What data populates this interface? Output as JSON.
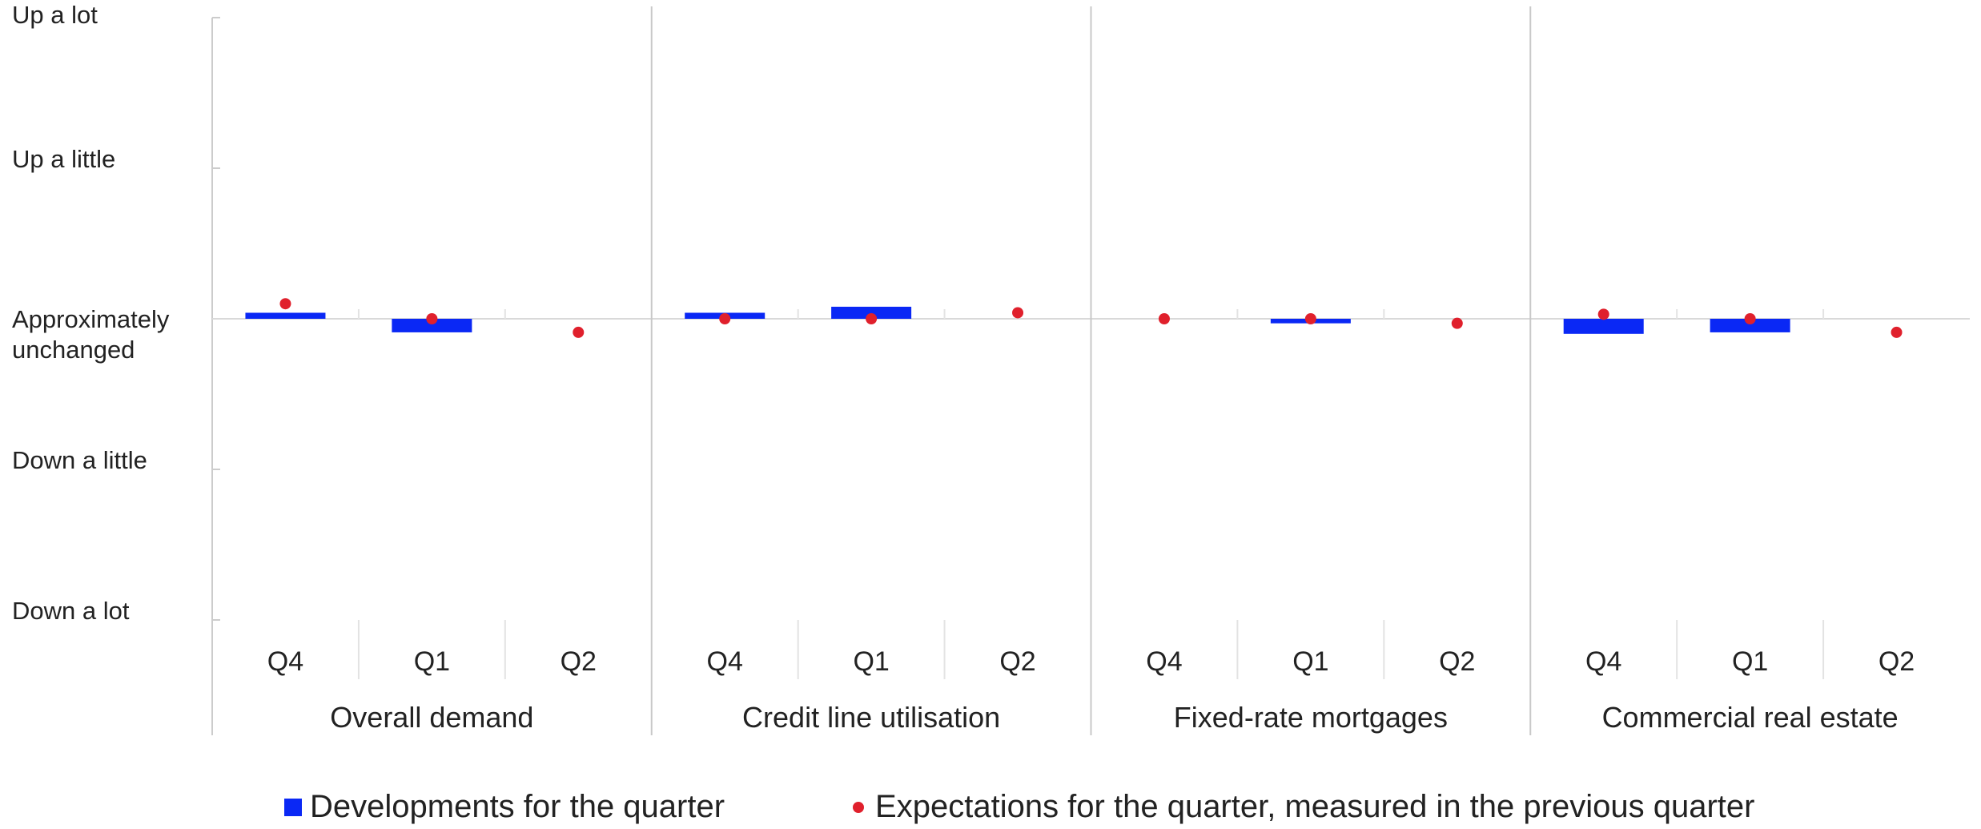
{
  "chart_data": {
    "type": "bar",
    "y_levels": [
      "Up a lot",
      "Up a little",
      "Approximately unchanged",
      "Down a little",
      "Down a lot"
    ],
    "ylim": [
      -2,
      2
    ],
    "groups": [
      {
        "label": "Overall demand",
        "quarters": [
          "Q4",
          "Q1",
          "Q2"
        ],
        "developments": [
          0.04,
          -0.09,
          null
        ],
        "expectations": [
          0.1,
          0.0,
          -0.09
        ]
      },
      {
        "label": "Credit line utilisation",
        "quarters": [
          "Q4",
          "Q1",
          "Q2"
        ],
        "developments": [
          0.04,
          0.08,
          null
        ],
        "expectations": [
          0.0,
          0.0,
          0.04
        ]
      },
      {
        "label": "Fixed-rate mortgages",
        "quarters": [
          "Q4",
          "Q1",
          "Q2"
        ],
        "developments": [
          null,
          -0.03,
          null
        ],
        "expectations": [
          0.0,
          0.0,
          -0.03
        ]
      },
      {
        "label": "Commercial real estate",
        "quarters": [
          "Q4",
          "Q1",
          "Q2"
        ],
        "developments": [
          -0.1,
          -0.09,
          null
        ],
        "expectations": [
          0.03,
          0.0,
          -0.09
        ]
      }
    ],
    "series": [
      {
        "name": "Developments for the quarter",
        "color": "#0a28f5",
        "kind": "bar"
      },
      {
        "name": "Expectations for the quarter, measured in the previous quarter",
        "color": "#e0202c",
        "kind": "dot"
      }
    ],
    "grid": false
  }
}
